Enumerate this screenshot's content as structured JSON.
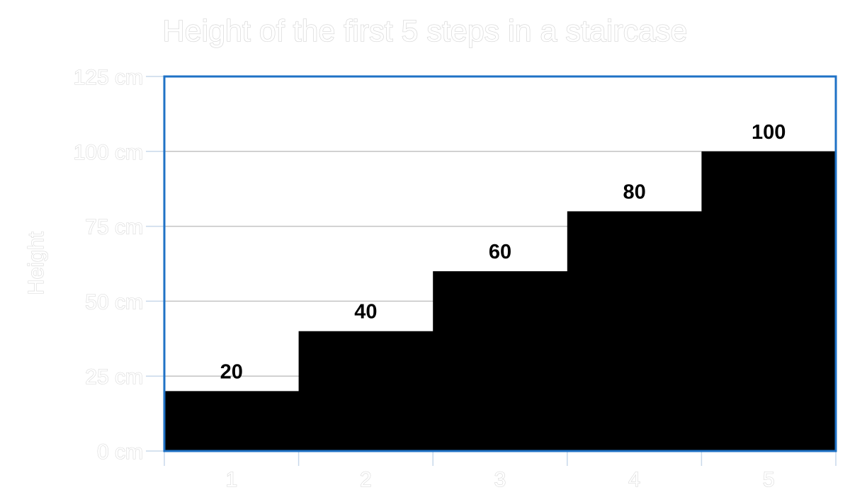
{
  "chart_data": {
    "type": "bar",
    "title": "Height of the first 5 steps in a staircase",
    "xlabel": "",
    "ylabel": "Height",
    "categories": [
      "1",
      "2",
      "3",
      "4",
      "5"
    ],
    "values": [
      20,
      40,
      60,
      80,
      100
    ],
    "data_labels": [
      "20",
      "40",
      "60",
      "80",
      "100"
    ],
    "y_ticks": [
      0,
      25,
      50,
      75,
      100,
      125
    ],
    "y_tick_labels": [
      "0 cm",
      "25 cm",
      "50 cm",
      "75 cm",
      "100 cm",
      "125 cm"
    ],
    "ylim": [
      0,
      125
    ],
    "grid": true,
    "legend": "none",
    "colors": {
      "bar": "#000000",
      "plot_border": "#1f72c6",
      "gridline": "#c3c3c3",
      "axis_tick": "#c8d8ea"
    }
  }
}
